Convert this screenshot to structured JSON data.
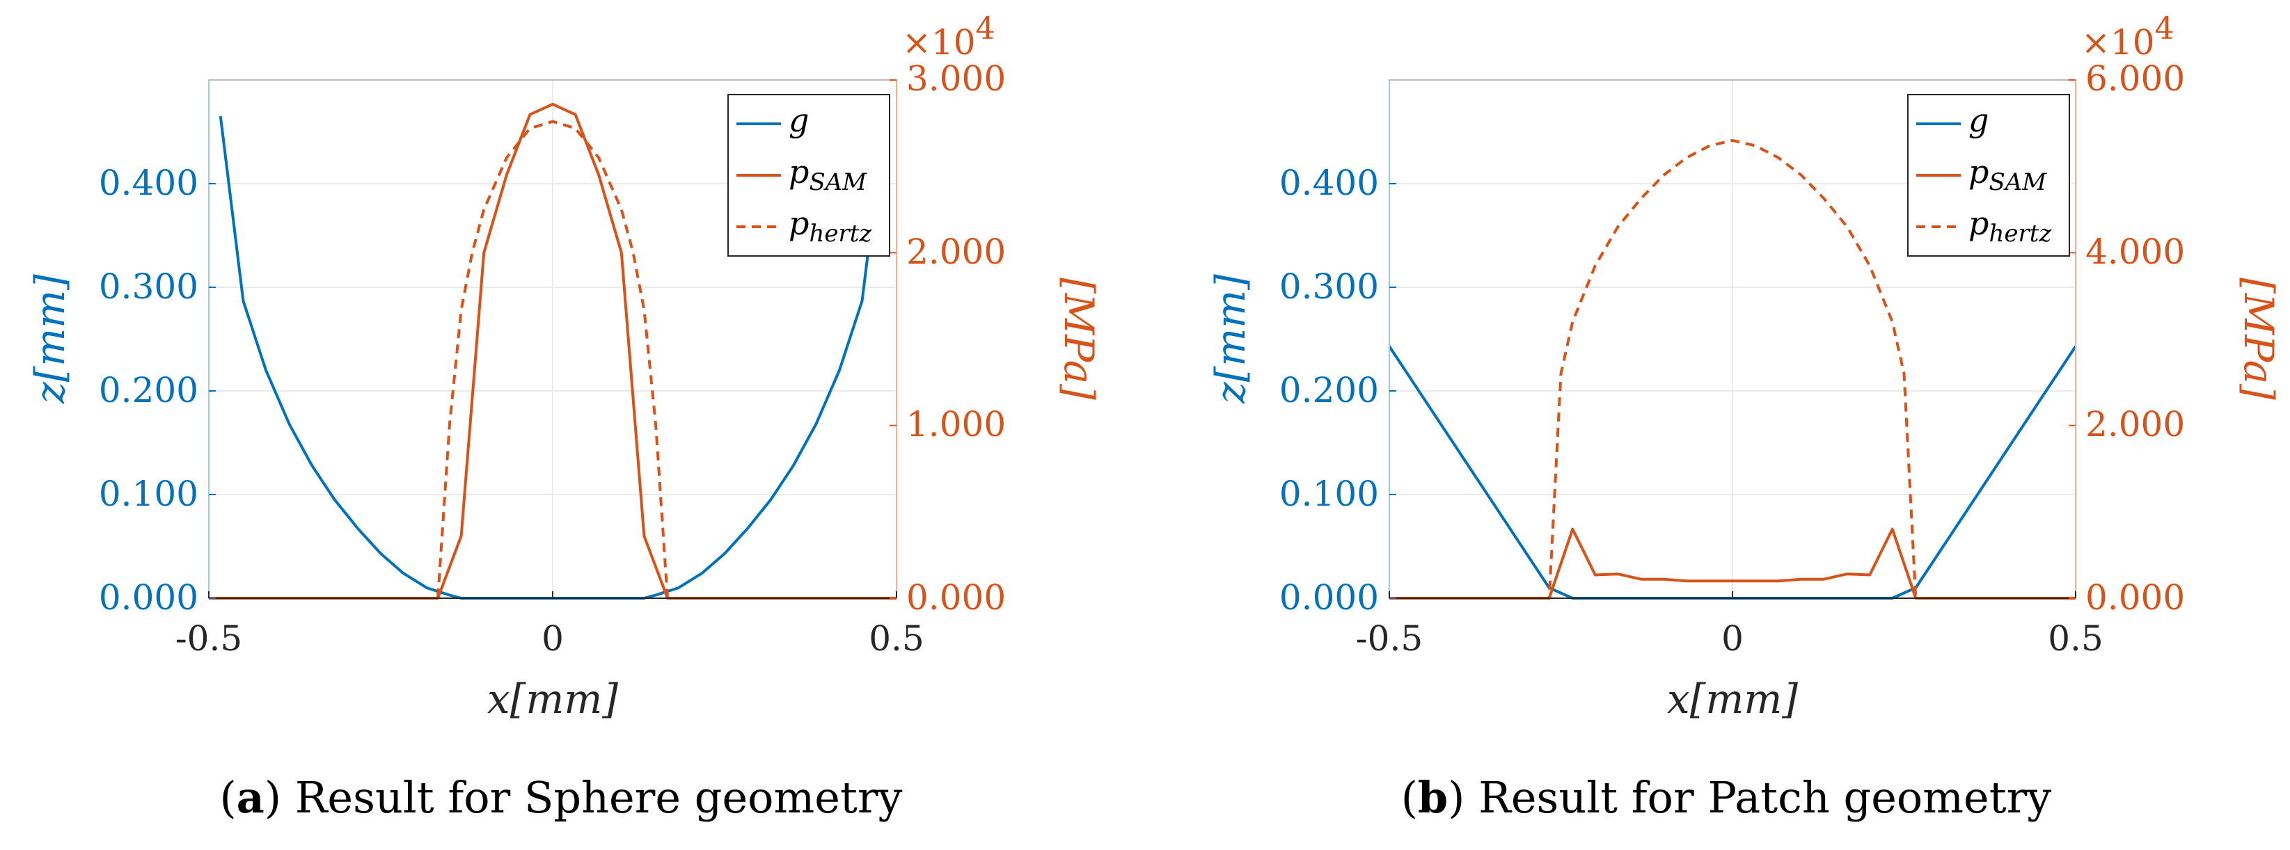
{
  "colors": {
    "gap": "#0072BD",
    "pressure": "#D95319",
    "axis": "#262626",
    "grid": "#ebebeb"
  },
  "chart_data": [
    {
      "type": "line",
      "panel_letter": "a",
      "caption": "Result for Sphere geometry",
      "xlabel": "x[mm]",
      "ylabel_left": "z[mm]",
      "ylabel_right": "[MPa]",
      "right_axis_multiplier": "×10",
      "right_axis_exponent": "4",
      "xlim": [
        -0.5,
        0.5
      ],
      "ylim_left": [
        0,
        0.5
      ],
      "ylim_right": [
        0,
        3.0
      ],
      "x_ticks": [
        "-0.5",
        "0",
        "0.5"
      ],
      "y_left_ticks": [
        {
          "value": 0.0,
          "label": "0.000"
        },
        {
          "value": 0.1,
          "label": "0.100"
        },
        {
          "value": 0.2,
          "label": "0.200"
        },
        {
          "value": 0.3,
          "label": "0.300"
        },
        {
          "value": 0.4,
          "label": "0.400"
        }
      ],
      "y_right_ticks": [
        {
          "value": 0.0,
          "label": "0.000"
        },
        {
          "value": 1.0,
          "label": "1.000"
        },
        {
          "value": 2.0,
          "label": "2.000"
        },
        {
          "value": 3.0,
          "label": "3.000"
        }
      ],
      "grid": true,
      "legend_position": "top-right",
      "series": [
        {
          "name": "g",
          "axis": "left",
          "style": "solid",
          "x": [
            -0.483,
            -0.45,
            -0.417,
            -0.383,
            -0.35,
            -0.317,
            -0.283,
            -0.25,
            -0.217,
            -0.183,
            -0.15,
            -0.133,
            -0.1,
            0,
            0.1,
            0.133,
            0.15,
            0.183,
            0.217,
            0.25,
            0.283,
            0.317,
            0.35,
            0.383,
            0.417,
            0.45,
            0.483
          ],
          "y": [
            0.465,
            0.287,
            0.22,
            0.168,
            0.128,
            0.095,
            0.067,
            0.043,
            0.024,
            0.01,
            0.003,
            0.0,
            0.0,
            0.0,
            0.0,
            0.0,
            0.003,
            0.01,
            0.024,
            0.043,
            0.067,
            0.095,
            0.128,
            0.168,
            0.22,
            0.287,
            0.465
          ]
        },
        {
          "name": "p_SAM",
          "axis": "right",
          "style": "solid",
          "x": [
            -0.5,
            -0.167,
            -0.133,
            -0.1,
            -0.067,
            -0.033,
            0,
            0.033,
            0.067,
            0.1,
            0.133,
            0.167,
            0.5
          ],
          "y": [
            0,
            0,
            0.36,
            2.0,
            2.45,
            2.8,
            2.86,
            2.8,
            2.45,
            2.0,
            0.36,
            0,
            0
          ]
        },
        {
          "name": "p_hertz",
          "axis": "right",
          "style": "dashed",
          "x": [
            -0.5,
            -0.167,
            -0.15,
            -0.133,
            -0.117,
            -0.1,
            -0.067,
            -0.033,
            0,
            0.033,
            0.067,
            0.1,
            0.117,
            0.133,
            0.15,
            0.167,
            0.5
          ],
          "y": [
            0,
            0,
            1.0,
            1.67,
            2.0,
            2.25,
            2.55,
            2.72,
            2.76,
            2.72,
            2.55,
            2.25,
            2.0,
            1.67,
            1.0,
            0,
            0
          ]
        }
      ]
    },
    {
      "type": "line",
      "panel_letter": "b",
      "caption": "Result for Patch geometry",
      "xlabel": "x[mm]",
      "ylabel_left": "z[mm]",
      "ylabel_right": "[MPa]",
      "right_axis_multiplier": "×10",
      "right_axis_exponent": "4",
      "xlim": [
        -0.5,
        0.5
      ],
      "ylim_left": [
        0,
        0.5
      ],
      "ylim_right": [
        0,
        6.0
      ],
      "x_ticks": [
        "-0.5",
        "0",
        "0.5"
      ],
      "y_left_ticks": [
        {
          "value": 0.0,
          "label": "0.000"
        },
        {
          "value": 0.1,
          "label": "0.100"
        },
        {
          "value": 0.2,
          "label": "0.200"
        },
        {
          "value": 0.3,
          "label": "0.300"
        },
        {
          "value": 0.4,
          "label": "0.400"
        }
      ],
      "y_right_ticks": [
        {
          "value": 0.0,
          "label": "0.000"
        },
        {
          "value": 2.0,
          "label": "2.000"
        },
        {
          "value": 4.0,
          "label": "4.000"
        },
        {
          "value": 6.0,
          "label": "6.000"
        }
      ],
      "grid": true,
      "legend_position": "top-right",
      "series": [
        {
          "name": "g",
          "axis": "left",
          "style": "solid",
          "x": [
            -0.5,
            -0.267,
            -0.233,
            0.233,
            0.267,
            0.5
          ],
          "y": [
            0.243,
            0.01,
            0.0,
            0.0,
            0.01,
            0.243
          ]
        },
        {
          "name": "p_SAM",
          "axis": "right",
          "style": "solid",
          "x": [
            -0.5,
            -0.267,
            -0.233,
            -0.2,
            -0.167,
            -0.133,
            -0.1,
            -0.067,
            -0.033,
            0,
            0.033,
            0.067,
            0.1,
            0.133,
            0.167,
            0.2,
            0.233,
            0.267,
            0.5
          ],
          "y": [
            0,
            0,
            0.8,
            0.27,
            0.28,
            0.22,
            0.22,
            0.2,
            0.2,
            0.2,
            0.2,
            0.2,
            0.22,
            0.22,
            0.28,
            0.27,
            0.8,
            0,
            0
          ]
        },
        {
          "name": "p_hertz",
          "axis": "right",
          "style": "dashed",
          "x": [
            -0.5,
            -0.267,
            -0.25,
            -0.233,
            -0.2,
            -0.167,
            -0.133,
            -0.1,
            -0.067,
            -0.033,
            0,
            0.033,
            0.067,
            0.1,
            0.133,
            0.167,
            0.2,
            0.233,
            0.25,
            0.267,
            0.5
          ],
          "y": [
            0,
            0,
            2.6,
            3.2,
            3.85,
            4.3,
            4.63,
            4.9,
            5.1,
            5.24,
            5.3,
            5.24,
            5.1,
            4.9,
            4.63,
            4.3,
            3.85,
            3.2,
            2.6,
            0,
            0
          ]
        }
      ]
    }
  ]
}
